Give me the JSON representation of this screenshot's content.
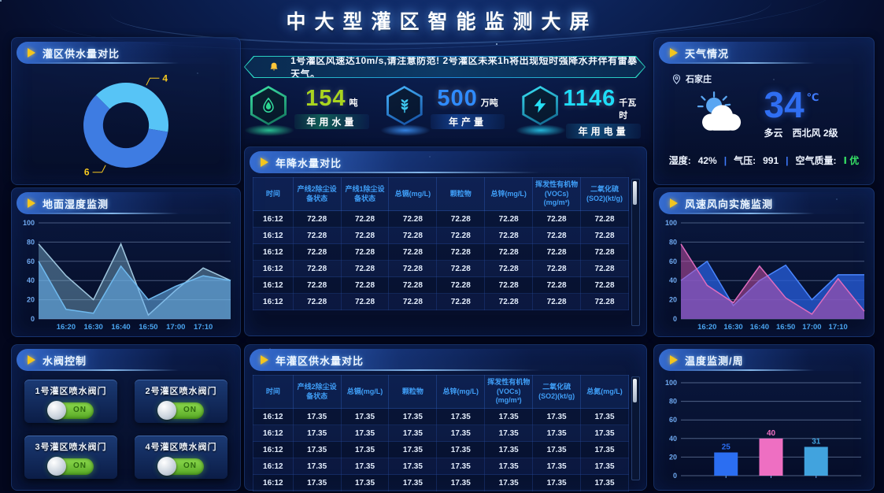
{
  "header": {
    "title": "中大型灌区智能监测大屏"
  },
  "alert": {
    "text": "1号灌区风速达10m/s,请注意防范! 2号灌区未来1h将出现短时强降水并伴有雷暴天气。"
  },
  "stats": [
    {
      "value": "154",
      "unit": "吨",
      "label": "年用水量",
      "icon": "water-drop-icon",
      "color": "#a9d41f"
    },
    {
      "value": "500",
      "unit": "万吨",
      "label": "年产量",
      "icon": "wheat-icon",
      "color": "#2f8bfd"
    },
    {
      "value": "1146",
      "unit": "千瓦时",
      "label": "年用电量",
      "icon": "lightning-icon",
      "color": "#1fdcf7"
    }
  ],
  "panels": {
    "supply_compare": {
      "title": "灌区供水量对比"
    },
    "ground_humidity": {
      "title": "地面湿度监测"
    },
    "valve_control": {
      "title": "水阀控制"
    },
    "rainfall_table": {
      "title": "年降水量对比"
    },
    "supply_table": {
      "title": "年灌区供水量对比"
    },
    "weather": {
      "title": "天气情况"
    },
    "wind": {
      "title": "风速风向实施监测"
    },
    "temperature": {
      "title": "温度监测/周"
    }
  },
  "weather": {
    "city": "石家庄",
    "temp": "34",
    "temp_unit": "℃",
    "condition": "多云",
    "wind": "西北风 2级",
    "humidity_label": "湿度:",
    "humidity_value": "42%",
    "pressure_label": "气压:",
    "pressure_value": "991",
    "aqi_label": "空气质量:",
    "aqi_value": "Ⅰ 优",
    "aqi_color": "#35e065"
  },
  "valves": [
    {
      "label": "1号灌区喷水阀门",
      "state": "ON"
    },
    {
      "label": "2号灌区喷水阀门",
      "state": "ON"
    },
    {
      "label": "3号灌区喷水阀门",
      "state": "ON"
    },
    {
      "label": "4号灌区喷水阀门",
      "state": "ON"
    }
  ],
  "tables": {
    "rainfall": {
      "columns": [
        "时间",
        "产线2除尘设备状态",
        "产线1除尘设备状态",
        "总镉(mg/L)",
        "颗粒物",
        "总锌(mg/L)",
        "挥发性有机物(VOCs)(mg/m³)",
        "二氧化硫(SO2)(kt/g)"
      ],
      "rows": [
        [
          "16:12",
          "72.28",
          "72.28",
          "72.28",
          "72.28",
          "72.28",
          "72.28",
          "72.28"
        ],
        [
          "16:12",
          "72.28",
          "72.28",
          "72.28",
          "72.28",
          "72.28",
          "72.28",
          "72.28"
        ],
        [
          "16:12",
          "72.28",
          "72.28",
          "72.28",
          "72.28",
          "72.28",
          "72.28",
          "72.28"
        ],
        [
          "16:12",
          "72.28",
          "72.28",
          "72.28",
          "72.28",
          "72.28",
          "72.28",
          "72.28"
        ],
        [
          "16:12",
          "72.28",
          "72.28",
          "72.28",
          "72.28",
          "72.28",
          "72.28",
          "72.28"
        ],
        [
          "16:12",
          "72.28",
          "72.28",
          "72.28",
          "72.28",
          "72.28",
          "72.28",
          "72.28"
        ]
      ]
    },
    "supply": {
      "columns": [
        "时间",
        "产线2除尘设备状态",
        "总镉(mg/L)",
        "颗粒物",
        "总锌(mg/L)",
        "挥发性有机物(VOCs)(mg/m³)",
        "二氧化硫(SO2)(kt/g)",
        "总氮(mg/L)"
      ],
      "rows": [
        [
          "16:12",
          "17.35",
          "17.35",
          "17.35",
          "17.35",
          "17.35",
          "17.35",
          "17.35"
        ],
        [
          "16:12",
          "17.35",
          "17.35",
          "17.35",
          "17.35",
          "17.35",
          "17.35",
          "17.35"
        ],
        [
          "16:12",
          "17.35",
          "17.35",
          "17.35",
          "17.35",
          "17.35",
          "17.35",
          "17.35"
        ],
        [
          "16:12",
          "17.35",
          "17.35",
          "17.35",
          "17.35",
          "17.35",
          "17.35",
          "17.35"
        ],
        [
          "16:12",
          "17.35",
          "17.35",
          "17.35",
          "17.35",
          "17.35",
          "17.35",
          "17.35"
        ]
      ]
    }
  },
  "chart_data": [
    {
      "id": "donut-supply",
      "type": "donut",
      "title": "灌区供水量对比",
      "slices": [
        {
          "label": "4",
          "value": 4,
          "color": "#57c4f6"
        },
        {
          "label": "6",
          "value": 6,
          "color": "#3e7ce2"
        }
      ],
      "start_angle": 315,
      "label_color": "#f6c820"
    },
    {
      "id": "area-humidity",
      "type": "area",
      "title": "地面湿度监测",
      "ylim": [
        0,
        100
      ],
      "yticks": [
        0,
        20,
        40,
        60,
        80,
        100
      ],
      "x_labels": [
        "16:20",
        "16:30",
        "16:40",
        "16:50",
        "17:00",
        "17:10"
      ],
      "x_label_indices": [
        1,
        2,
        3,
        4,
        5,
        6
      ],
      "series": [
        {
          "name": "humidity-a",
          "values": [
            78,
            45,
            20,
            78,
            4,
            30,
            53,
            40
          ],
          "stroke": "#9fc6de",
          "fill": "rgba(125,175,205,0.45)"
        },
        {
          "name": "humidity-b",
          "values": [
            60,
            10,
            6,
            55,
            20,
            34,
            45,
            40
          ],
          "stroke": "#6fb9ee",
          "fill": "rgba(105,180,240,0.55)"
        }
      ]
    },
    {
      "id": "area-wind",
      "type": "area",
      "title": "风速风向实施监测",
      "ylim": [
        0,
        100
      ],
      "yticks": [
        0,
        20,
        40,
        60,
        80,
        100
      ],
      "x_labels": [
        "16:20",
        "16:30",
        "16:40",
        "16:50",
        "17:00",
        "17:10"
      ],
      "x_label_indices": [
        1,
        2,
        3,
        4,
        5,
        6
      ],
      "series": [
        {
          "name": "wind-speed",
          "values": [
            40,
            60,
            14,
            40,
            56,
            20,
            46,
            46
          ],
          "stroke": "#4a86ff",
          "fill": "rgba(38,92,216,0.78)"
        },
        {
          "name": "wind-direction",
          "values": [
            78,
            35,
            17,
            55,
            22,
            5,
            42,
            8
          ],
          "stroke": "#df6cbe",
          "fill": "rgba(202,82,172,0.52)"
        }
      ]
    },
    {
      "id": "bar-temperature",
      "type": "bar",
      "title": "温度监测/周",
      "ylim": [
        0,
        100
      ],
      "yticks": [
        0,
        20,
        40,
        60,
        80,
        100
      ],
      "categories": [
        "",
        "",
        ""
      ],
      "values": [
        25,
        40,
        31
      ],
      "colors": [
        "#2b6ef2",
        "#ee6fc2",
        "#41a3de"
      ]
    }
  ]
}
